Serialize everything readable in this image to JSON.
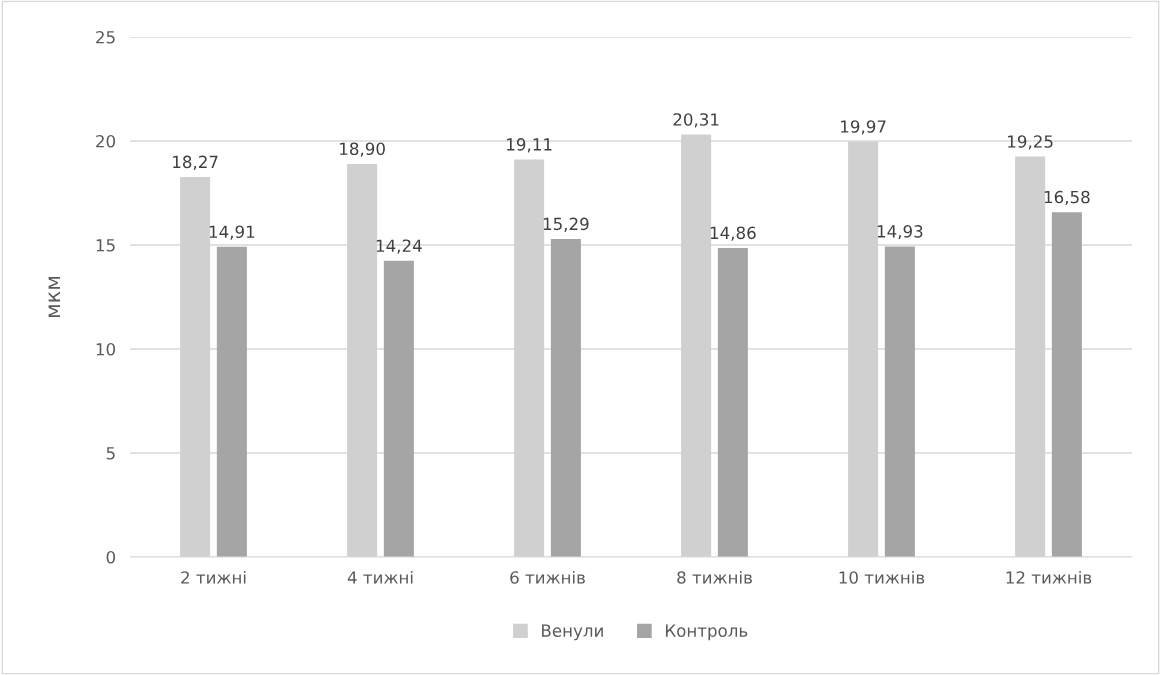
{
  "chart_data": {
    "type": "bar",
    "ylabel": "мкм",
    "categories": [
      "2 тижні",
      "4 тижні",
      "6 тижнів",
      "8 тижнів",
      "10 тижнів",
      "12 тижнів"
    ],
    "series": [
      {
        "name": "Венули",
        "color": "#d0d0d0",
        "values": [
          18.27,
          18.9,
          19.11,
          20.31,
          19.97,
          19.25
        ],
        "value_labels": [
          "18,27",
          "18,90",
          "19,11",
          "20,31",
          "19,97",
          "19,25"
        ]
      },
      {
        "name": "Контроль",
        "color": "#a5a5a5",
        "values": [
          14.91,
          14.24,
          15.29,
          14.86,
          14.93,
          16.58
        ],
        "value_labels": [
          "14,91",
          "14,24",
          "15,29",
          "14,86",
          "14,93",
          "16,58"
        ]
      }
    ],
    "ylim": [
      0,
      25
    ],
    "yticks": [
      0,
      5,
      10,
      15,
      20,
      25
    ],
    "grid": "y",
    "legend": "bottom"
  }
}
